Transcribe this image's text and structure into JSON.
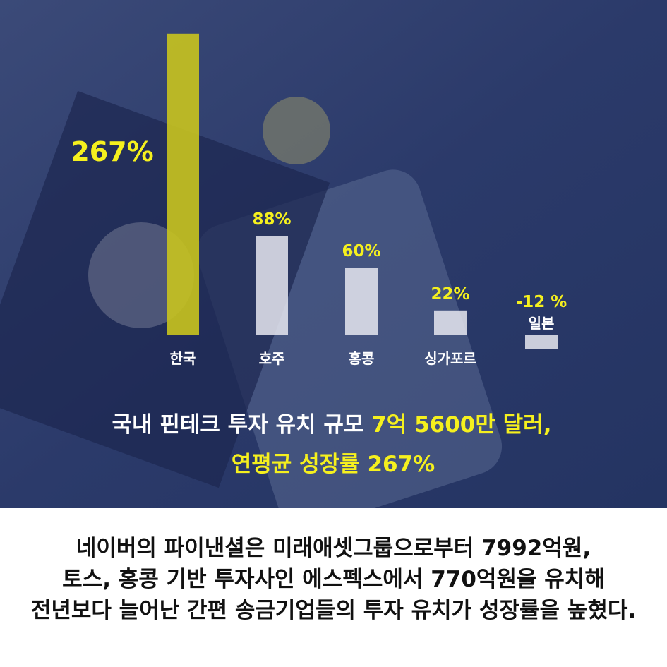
{
  "chart_data": {
    "type": "bar",
    "categories": [
      "한국",
      "호주",
      "홍콩",
      "싱가포르",
      "일본"
    ],
    "values": [
      267,
      88,
      60,
      22,
      -12
    ],
    "value_labels": [
      "267%",
      "88%",
      "60%",
      "22%",
      "-12 %"
    ],
    "colors": [
      "#c9c41e",
      "#e6e8f0",
      "#e6e8f0",
      "#e6e8f0",
      "#e6e8f0"
    ],
    "ylim": [
      -50,
      270
    ],
    "headline": [
      "국내 핀테크 투자 유치 규모 ",
      "7억 5600만 달러,",
      "연평균 성장률 267%"
    ]
  },
  "caption": [
    "네이버의 파이낸셜은 미래애셋그룹으로부터 7992억원,",
    "토스, 홍콩 기반 투자사인 에스펙스에서 770억원을 유치해",
    "전년보다 늘어난 간편 송금기업들의 투자 유치가 성장률을 높혔다."
  ]
}
